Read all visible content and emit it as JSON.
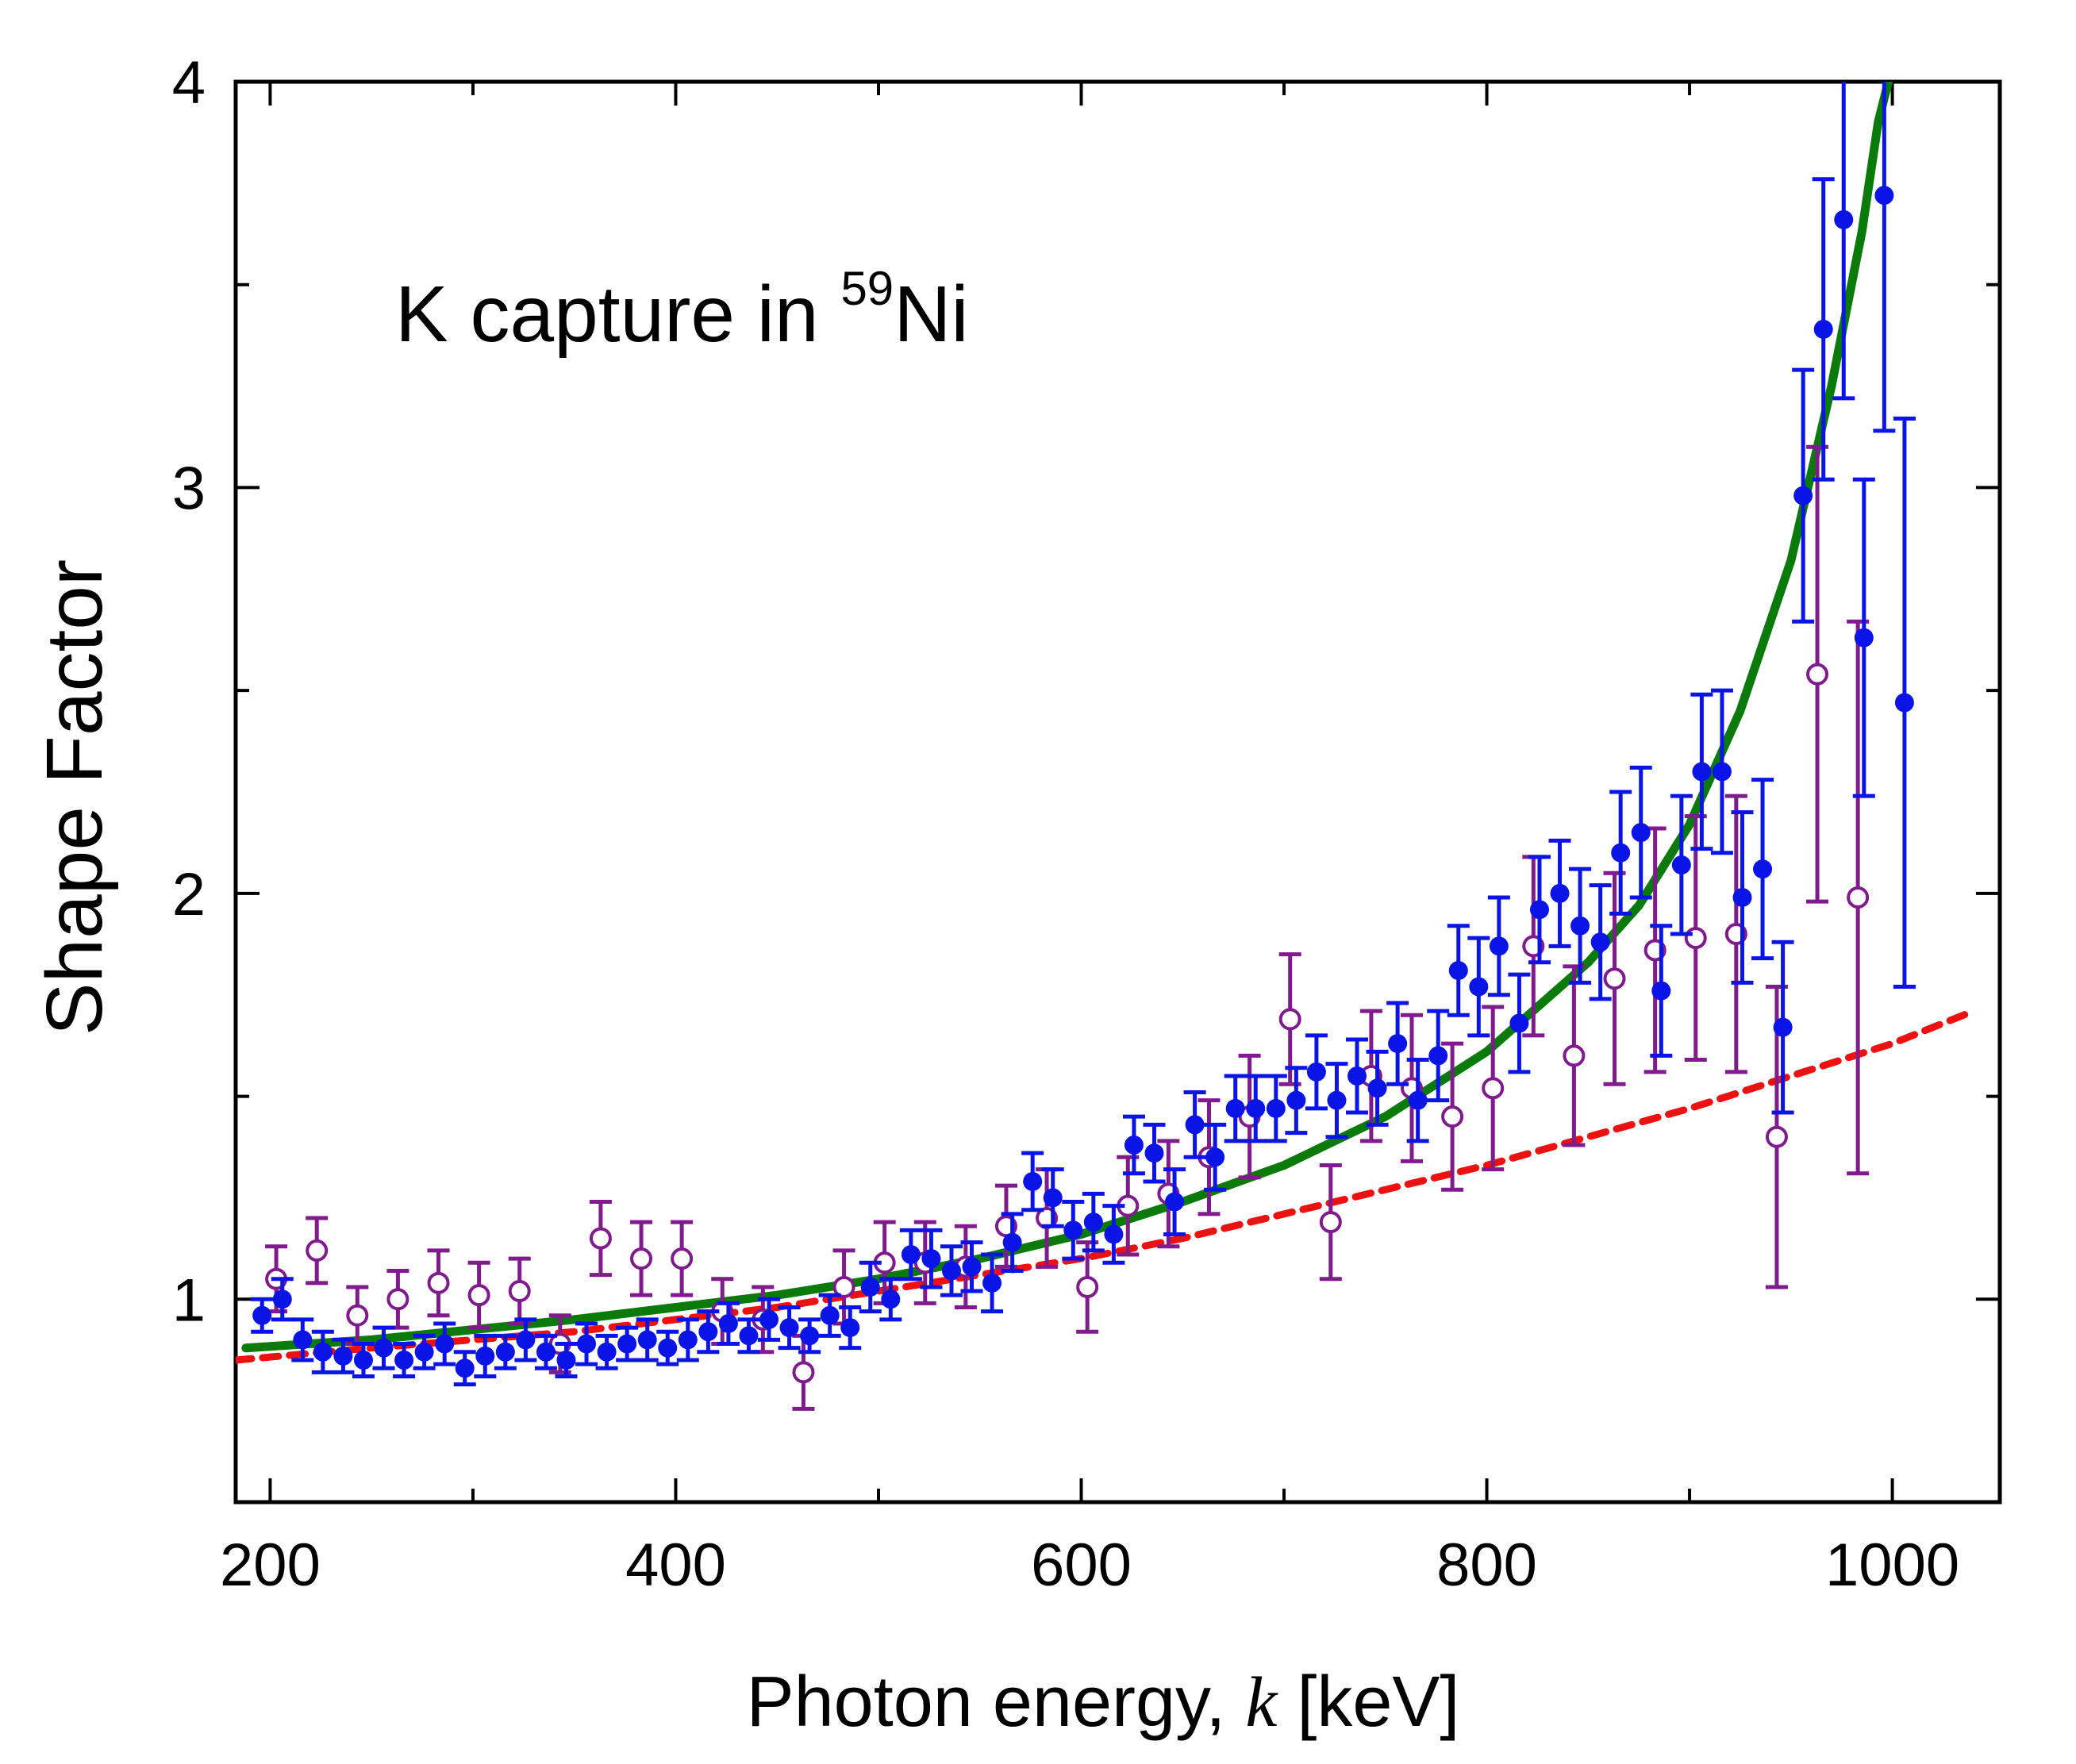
{
  "chart_data": {
    "type": "scatter",
    "title": "",
    "annotation": {
      "prefix": "K capture in ",
      "superscript": "59",
      "suffix": "Ni"
    },
    "xlabel": {
      "before": "Photon energy, ",
      "variable": "k",
      "after": " [keV]"
    },
    "ylabel": "Shape Factor",
    "xlim": [
      183,
      1053
    ],
    "ylim": [
      0.5,
      4.0
    ],
    "x_ticks": [
      200,
      400,
      600,
      800,
      1000
    ],
    "x_tick_labels": [
      "200",
      "400",
      "600",
      "800",
      "1000"
    ],
    "x_minor_ticks": [
      300,
      500,
      700,
      900
    ],
    "y_ticks": [
      1,
      2,
      3,
      4
    ],
    "y_tick_labels": [
      "1",
      "2",
      "3",
      "4"
    ],
    "y_minor_ticks": [
      1.5,
      2.5,
      3.5
    ],
    "grid": false,
    "colors": {
      "filled_series": "#0a14e6",
      "open_series": "#7f1b8c",
      "solid_curve": "#0a7a0a",
      "dashed_curve": "#ee1111"
    },
    "series": [
      {
        "marker": "filled-circle",
        "color": "#0a14e6",
        "points": [
          [
            196,
            0.96,
            0.04
          ],
          [
            206,
            1.0,
            0.05
          ],
          [
            216,
            0.9,
            0.05
          ],
          [
            226,
            0.87,
            0.05
          ],
          [
            236,
            0.86,
            0.04
          ],
          [
            246,
            0.85,
            0.04
          ],
          [
            256,
            0.88,
            0.05
          ],
          [
            266,
            0.85,
            0.04
          ],
          [
            276,
            0.87,
            0.04
          ],
          [
            286,
            0.89,
            0.05
          ],
          [
            296,
            0.83,
            0.04
          ],
          [
            306,
            0.86,
            0.05
          ],
          [
            316,
            0.87,
            0.04
          ],
          [
            326,
            0.9,
            0.05
          ],
          [
            336,
            0.87,
            0.04
          ],
          [
            346,
            0.85,
            0.04
          ],
          [
            356,
            0.89,
            0.05
          ],
          [
            366,
            0.87,
            0.04
          ],
          [
            376,
            0.89,
            0.04
          ],
          [
            386,
            0.9,
            0.05
          ],
          [
            396,
            0.88,
            0.04
          ],
          [
            406,
            0.9,
            0.05
          ],
          [
            416,
            0.92,
            0.05
          ],
          [
            426,
            0.94,
            0.05
          ],
          [
            436,
            0.91,
            0.04
          ],
          [
            446,
            0.95,
            0.05
          ],
          [
            456,
            0.93,
            0.05
          ],
          [
            466,
            0.91,
            0.04
          ],
          [
            476,
            0.96,
            0.05
          ],
          [
            486,
            0.93,
            0.05
          ],
          [
            496,
            1.03,
            0.06
          ],
          [
            506,
            1.0,
            0.05
          ],
          [
            516,
            1.11,
            0.06
          ],
          [
            526,
            1.1,
            0.07
          ],
          [
            536,
            1.07,
            0.06
          ],
          [
            546,
            1.08,
            0.06
          ],
          [
            556,
            1.04,
            0.07
          ],
          [
            566,
            1.14,
            0.07
          ],
          [
            576,
            1.29,
            0.07
          ],
          [
            586,
            1.25,
            0.07
          ],
          [
            596,
            1.17,
            0.07
          ],
          [
            606,
            1.19,
            0.07
          ],
          [
            616,
            1.16,
            0.07
          ],
          [
            626,
            1.38,
            0.07
          ],
          [
            636,
            1.36,
            0.07
          ],
          [
            646,
            1.24,
            0.08
          ],
          [
            656,
            1.43,
            0.08
          ],
          [
            666,
            1.35,
            0.08
          ],
          [
            676,
            1.47,
            0.08
          ],
          [
            686,
            1.47,
            0.08
          ],
          [
            696,
            1.47,
            0.08
          ],
          [
            706,
            1.49,
            0.08
          ],
          [
            716,
            1.56,
            0.09
          ],
          [
            726,
            1.49,
            0.09
          ],
          [
            736,
            1.55,
            0.09
          ],
          [
            746,
            1.52,
            0.09
          ],
          [
            756,
            1.63,
            0.1
          ],
          [
            766,
            1.49,
            0.1
          ],
          [
            776,
            1.6,
            0.11
          ],
          [
            786,
            1.81,
            0.11
          ],
          [
            796,
            1.77,
            0.12
          ],
          [
            806,
            1.87,
            0.12
          ],
          [
            816,
            1.68,
            0.12
          ],
          [
            826,
            1.96,
            0.13
          ],
          [
            836,
            2.0,
            0.13
          ],
          [
            846,
            1.92,
            0.14
          ],
          [
            856,
            1.88,
            0.14
          ],
          [
            866,
            2.1,
            0.15
          ],
          [
            876,
            2.15,
            0.16
          ],
          [
            886,
            1.76,
            0.16
          ],
          [
            896,
            2.07,
            0.17
          ],
          [
            906,
            2.3,
            0.19
          ],
          [
            916,
            2.3,
            0.2
          ],
          [
            926,
            1.99,
            0.21
          ],
          [
            936,
            2.06,
            0.22
          ],
          [
            946,
            1.67,
            0.21
          ],
          [
            956,
            2.98,
            0.31
          ],
          [
            966,
            3.39,
            0.37
          ],
          [
            976,
            3.66,
            0.44
          ],
          [
            986,
            2.63,
            0.39
          ],
          [
            996,
            3.72,
            0.58
          ],
          [
            1006,
            2.47,
            0.7
          ]
        ]
      },
      {
        "marker": "open-circle",
        "color": "#7f1b8c",
        "points": [
          [
            203,
            1.05,
            0.08
          ],
          [
            223,
            1.12,
            0.08
          ],
          [
            243,
            0.96,
            0.07
          ],
          [
            263,
            1.0,
            0.07
          ],
          [
            283,
            1.04,
            0.08
          ],
          [
            303,
            1.01,
            0.08
          ],
          [
            323,
            1.02,
            0.08
          ],
          [
            343,
            0.89,
            0.07
          ],
          [
            363,
            1.15,
            0.09
          ],
          [
            383,
            1.1,
            0.09
          ],
          [
            403,
            1.1,
            0.09
          ],
          [
            423,
            0.97,
            0.08
          ],
          [
            443,
            0.95,
            0.08
          ],
          [
            463,
            0.82,
            0.09
          ],
          [
            483,
            1.03,
            0.09
          ],
          [
            503,
            1.09,
            0.1
          ],
          [
            523,
            1.09,
            0.1
          ],
          [
            543,
            1.08,
            0.1
          ],
          [
            563,
            1.18,
            0.1
          ],
          [
            583,
            1.2,
            0.12
          ],
          [
            603,
            1.03,
            0.11
          ],
          [
            623,
            1.23,
            0.12
          ],
          [
            643,
            1.26,
            0.13
          ],
          [
            663,
            1.35,
            0.14
          ],
          [
            683,
            1.45,
            0.15
          ],
          [
            703,
            1.69,
            0.16
          ],
          [
            723,
            1.19,
            0.14
          ],
          [
            743,
            1.55,
            0.16
          ],
          [
            763,
            1.52,
            0.18
          ],
          [
            783,
            1.45,
            0.18
          ],
          [
            803,
            1.52,
            0.2
          ],
          [
            823,
            1.87,
            0.22
          ],
          [
            843,
            1.6,
            0.22
          ],
          [
            863,
            1.79,
            0.26
          ],
          [
            883,
            1.86,
            0.3
          ],
          [
            903,
            1.89,
            0.3
          ],
          [
            923,
            1.9,
            0.34
          ],
          [
            943,
            1.4,
            0.37
          ],
          [
            963,
            2.54,
            0.56
          ],
          [
            983,
            1.99,
            0.68
          ]
        ]
      }
    ],
    "curves": [
      {
        "style": "solid",
        "color": "#0a7a0a",
        "points": [
          [
            188,
            0.88
          ],
          [
            250,
            0.9
          ],
          [
            300,
            0.925
          ],
          [
            350,
            0.95
          ],
          [
            400,
            0.98
          ],
          [
            450,
            1.01
          ],
          [
            500,
            1.05
          ],
          [
            550,
            1.1
          ],
          [
            600,
            1.16
          ],
          [
            650,
            1.24
          ],
          [
            700,
            1.33
          ],
          [
            750,
            1.45
          ],
          [
            800,
            1.61
          ],
          [
            850,
            1.83
          ],
          [
            875,
            1.97
          ],
          [
            900,
            2.17
          ],
          [
            925,
            2.45
          ],
          [
            950,
            2.82
          ],
          [
            970,
            3.25
          ],
          [
            985,
            3.63
          ],
          [
            993,
            3.9
          ],
          [
            998,
            4.0
          ]
        ]
      },
      {
        "style": "dashed",
        "color": "#ee1111",
        "points": [
          [
            183,
            0.85
          ],
          [
            250,
            0.88
          ],
          [
            300,
            0.9
          ],
          [
            350,
            0.92
          ],
          [
            400,
            0.95
          ],
          [
            450,
            0.98
          ],
          [
            500,
            1.02
          ],
          [
            550,
            1.06
          ],
          [
            600,
            1.1
          ],
          [
            650,
            1.15
          ],
          [
            700,
            1.21
          ],
          [
            750,
            1.27
          ],
          [
            800,
            1.33
          ],
          [
            850,
            1.4
          ],
          [
            900,
            1.47
          ],
          [
            950,
            1.55
          ],
          [
            1000,
            1.63
          ],
          [
            1040,
            1.71
          ]
        ]
      }
    ]
  }
}
